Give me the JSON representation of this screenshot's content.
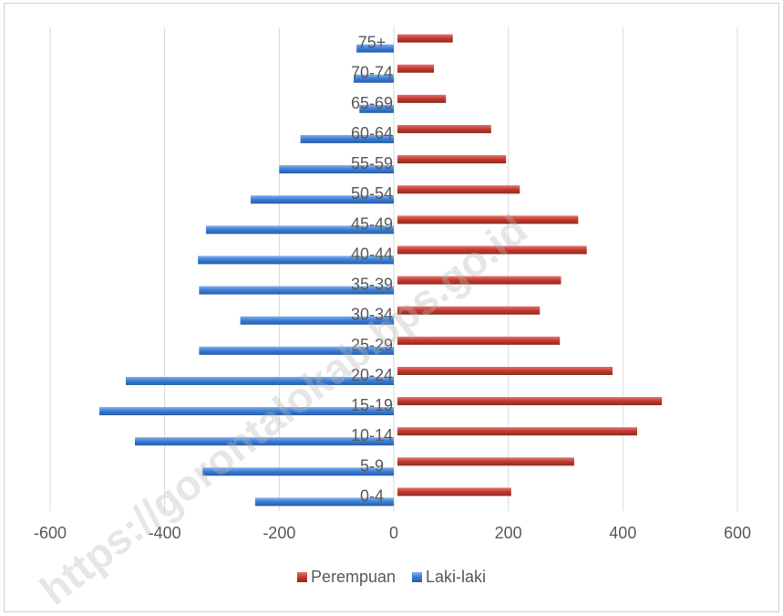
{
  "chart_data": {
    "type": "bar",
    "orientation": "horizontal",
    "categories": [
      "0-4",
      "5-9",
      "10-14",
      "15-19",
      "20-24",
      "25-29",
      "30-34",
      "35-39",
      "40-44",
      "45-49",
      "50-54",
      "55-59",
      "60-64",
      "65-69",
      "70-74",
      "75+"
    ],
    "series": [
      {
        "name": "Perempuan",
        "color": "#c0392b",
        "values": [
          205,
          315,
          425,
          468,
          382,
          290,
          255,
          292,
          337,
          322,
          220,
          196,
          170,
          91,
          70,
          103
        ]
      },
      {
        "name": "Laki-laki",
        "color": "#3a7bd5",
        "values": [
          -242,
          -334,
          -452,
          -514,
          -468,
          -340,
          -268,
          -340,
          -342,
          -328,
          -250,
          -200,
          -163,
          -60,
          -70,
          -65
        ]
      }
    ],
    "xlim": [
      -600,
      600
    ],
    "xticks": [
      -600,
      -400,
      -200,
      0,
      200,
      400,
      600
    ],
    "xtick_labels": [
      "-600",
      "-400",
      "-200",
      "0",
      "200",
      "400",
      "600"
    ],
    "grid": true,
    "legend": "bottom",
    "title": "",
    "xlabel": "",
    "ylabel": ""
  },
  "legend": {
    "items": [
      {
        "label": "Perempuan",
        "color": "#c0392b"
      },
      {
        "label": "Laki-laki",
        "color": "#3a7bd5"
      }
    ]
  },
  "watermark": {
    "text": "https://gorontalokab.bps.go.id"
  }
}
